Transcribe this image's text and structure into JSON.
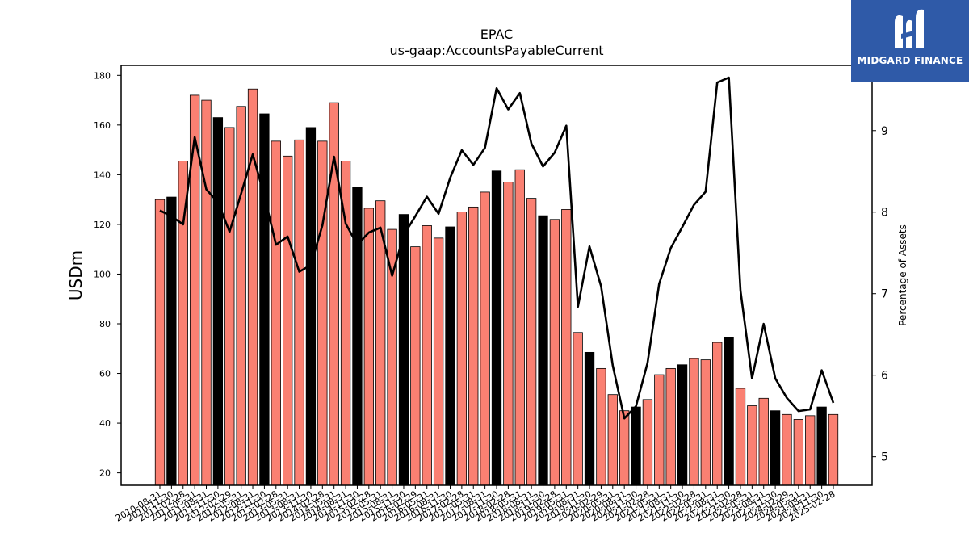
{
  "brand": {
    "name": "MIDGARD FINANCE",
    "color": "#2f5aa8"
  },
  "colors": {
    "bar_regular": "#fa8072",
    "bar_highlight": "#000000",
    "line": "#000000"
  },
  "chart_data": {
    "type": "bar",
    "title": "EPAC",
    "subtitle": "us-gaap:AccountsPayableCurrent",
    "ylabel": "USDm",
    "y2label": "Percentage of Assets",
    "ylim": [
      15,
      184
    ],
    "y2lim": [
      4.65,
      9.8
    ],
    "yticks": [
      20,
      40,
      60,
      80,
      100,
      120,
      140,
      160,
      180
    ],
    "y2ticks": [
      5,
      6,
      7,
      8,
      9
    ],
    "grid": false,
    "categories": [
      "2010-08-31",
      "2010-11-30",
      "2011-02-28",
      "2011-05-31",
      "2011-08-31",
      "2011-11-30",
      "2012-02-29",
      "2012-05-31",
      "2012-08-31",
      "2012-11-30",
      "2013-02-28",
      "2013-05-31",
      "2013-08-31",
      "2013-11-30",
      "2014-02-28",
      "2014-05-31",
      "2014-08-31",
      "2014-11-30",
      "2015-02-28",
      "2015-05-31",
      "2015-08-31",
      "2015-11-30",
      "2016-02-29",
      "2016-05-31",
      "2016-08-31",
      "2016-11-30",
      "2017-02-28",
      "2017-05-31",
      "2017-08-31",
      "2017-11-30",
      "2018-02-28",
      "2018-05-31",
      "2018-08-31",
      "2018-11-30",
      "2019-02-28",
      "2019-05-31",
      "2019-08-31",
      "2019-11-30",
      "2020-02-29",
      "2020-05-31",
      "2020-08-31",
      "2020-11-30",
      "2021-02-28",
      "2021-05-31",
      "2021-08-31",
      "2021-11-30",
      "2022-02-28",
      "2022-05-31",
      "2022-08-31",
      "2022-11-30",
      "2023-02-28",
      "2023-05-31",
      "2023-08-31",
      "2023-11-30",
      "2024-02-29",
      "2024-05-31",
      "2024-08-31",
      "2024-11-30",
      "2025-02-28"
    ],
    "series": [
      {
        "values": [
          130,
          131,
          145.5,
          172,
          170,
          163,
          159,
          167.5,
          174.5,
          164.5,
          153.5,
          147.5,
          154,
          159,
          153.5,
          169,
          145.5,
          135,
          126.5,
          129.5,
          118,
          124,
          111,
          119.5,
          114.5,
          119,
          125,
          127,
          133,
          141.5,
          137,
          142,
          130.5,
          123.5,
          122,
          126,
          76.5,
          68.5,
          62,
          51.5,
          45,
          46.5,
          49.5,
          59.5,
          62,
          63.5,
          66,
          65.5,
          72.5,
          74.5,
          54,
          47,
          50,
          45,
          43.5,
          41.5,
          43,
          46.5,
          43.5
        ],
        "highlight": [
          false,
          true,
          false,
          false,
          false,
          true,
          false,
          false,
          false,
          true,
          false,
          false,
          false,
          true,
          false,
          false,
          false,
          true,
          false,
          false,
          false,
          true,
          false,
          false,
          false,
          true,
          false,
          false,
          false,
          true,
          false,
          false,
          false,
          true,
          false,
          false,
          false,
          true,
          false,
          false,
          false,
          true,
          false,
          false,
          false,
          true,
          false,
          false,
          false,
          true,
          false,
          false,
          false,
          true,
          false,
          false,
          false,
          true,
          false
        ]
      },
      {
        "axis": "right",
        "type": "line",
        "values": [
          8.02,
          7.95,
          7.85,
          8.92,
          8.28,
          8.12,
          7.76,
          8.23,
          8.71,
          8.2,
          7.6,
          7.7,
          7.27,
          7.35,
          7.84,
          8.68,
          7.86,
          7.6,
          7.75,
          7.81,
          7.22,
          7.72,
          7.95,
          8.19,
          7.98,
          8.42,
          8.76,
          8.58,
          8.79,
          9.52,
          9.26,
          9.46,
          8.84,
          8.56,
          8.73,
          9.06,
          6.84,
          7.58,
          7.09,
          6.12,
          5.47,
          5.62,
          6.15,
          7.12,
          7.56,
          7.82,
          8.09,
          8.25,
          9.59,
          9.65,
          7.04,
          5.96,
          6.63,
          5.96,
          5.72,
          5.56,
          5.58,
          6.06,
          5.66
        ]
      }
    ]
  }
}
